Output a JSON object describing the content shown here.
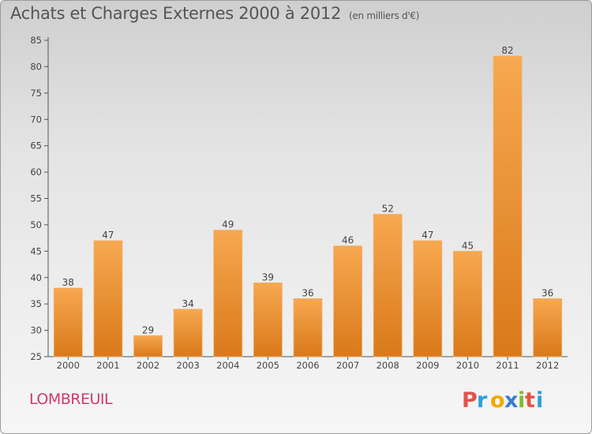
{
  "header": {
    "title": "Achats et Charges Externes 2000 à 2012",
    "unit_note": "(en milliers d'€)"
  },
  "footer": {
    "commune": "LOMBREUIL",
    "brand": "Proxiti"
  },
  "colors": {
    "bar_light": "#f7a850",
    "bar_dark": "#d9791a",
    "commune_text": "#d13a6a",
    "brand_p": "#e2534a",
    "brand_r": "#2f9fd8",
    "brand_o": "#f2a900",
    "brand_x": "#3a7bd5",
    "brand_i1": "#7bbf2e",
    "brand_t": "#e2534a",
    "brand_i2": "#2f9fd8"
  },
  "chart_data": {
    "type": "bar",
    "title": "Achats et Charges Externes 2000 à 2012",
    "subtitle": "(en milliers d'€)",
    "xlabel": "",
    "ylabel": "",
    "categories": [
      "2000",
      "2001",
      "2002",
      "2003",
      "2004",
      "2005",
      "2006",
      "2007",
      "2008",
      "2009",
      "2010",
      "2011",
      "2012"
    ],
    "values": [
      38,
      47,
      29,
      34,
      49,
      39,
      36,
      46,
      52,
      47,
      45,
      82,
      36
    ],
    "ylim": [
      25,
      85
    ],
    "yticks": [
      25,
      30,
      35,
      40,
      45,
      50,
      55,
      60,
      65,
      70,
      75,
      80,
      85
    ],
    "grid": false,
    "data_labels": true
  }
}
